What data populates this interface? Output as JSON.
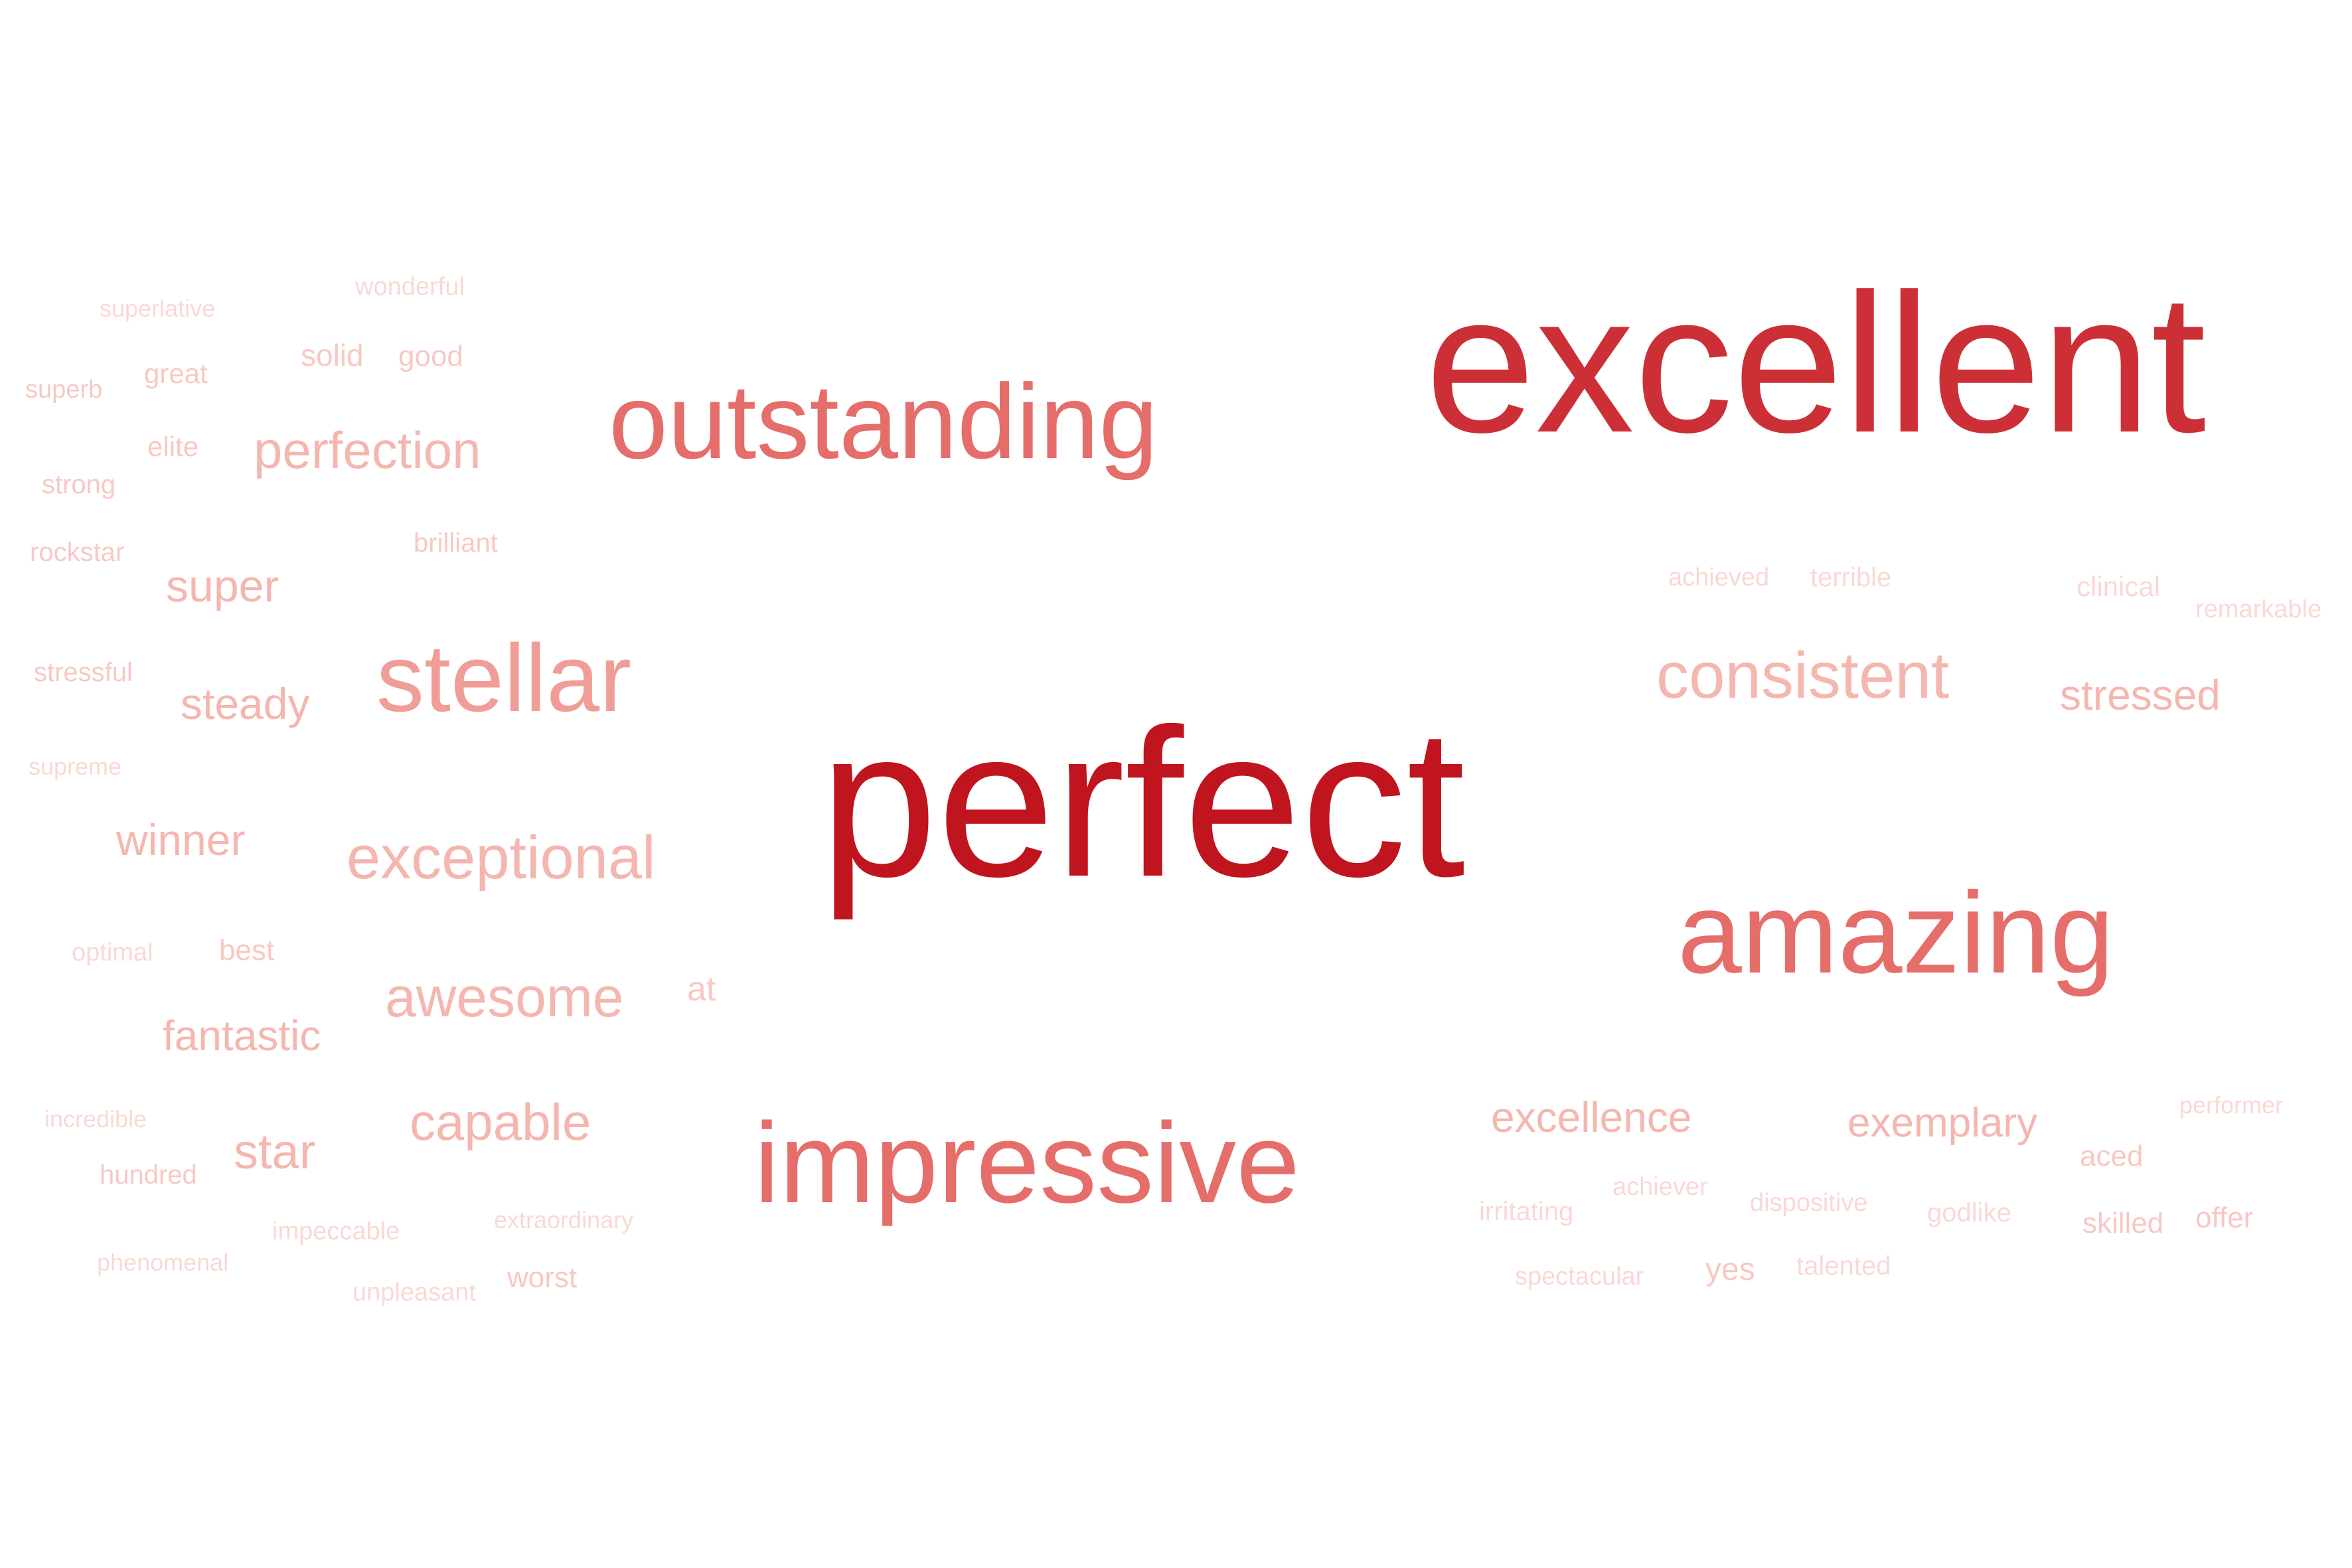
{
  "colors": {
    "background": "#ffffff",
    "tier_1": "#c0141f",
    "tier_2": "#cc3036",
    "tier_3": "#e56d6a",
    "tier_4": "#f09d98",
    "tier_5": "#f5b6b0",
    "tier_6": "#f8c8c4",
    "tier_7": "#fad8d5"
  },
  "words": [
    {
      "text": "perfect",
      "tier": 1
    },
    {
      "text": "excellent",
      "tier": 2
    },
    {
      "text": "outstanding",
      "tier": 3
    },
    {
      "text": "amazing",
      "tier": 3
    },
    {
      "text": "impressive",
      "tier": 3
    },
    {
      "text": "stellar",
      "tier": 4
    },
    {
      "text": "consistent",
      "tier": 5
    },
    {
      "text": "exceptional",
      "tier": 5
    },
    {
      "text": "perfection",
      "tier": 5
    },
    {
      "text": "awesome",
      "tier": 5
    },
    {
      "text": "capable",
      "tier": 5
    },
    {
      "text": "stressed",
      "tier": 5
    },
    {
      "text": "excellence",
      "tier": 5
    },
    {
      "text": "exemplary",
      "tier": 5
    },
    {
      "text": "super",
      "tier": 5
    },
    {
      "text": "steady",
      "tier": 5
    },
    {
      "text": "winner",
      "tier": 5
    },
    {
      "text": "fantastic",
      "tier": 5
    },
    {
      "text": "star",
      "tier": 5
    },
    {
      "text": "superlative",
      "tier": 7
    },
    {
      "text": "wonderful",
      "tier": 7
    },
    {
      "text": "solid",
      "tier": 6
    },
    {
      "text": "good",
      "tier": 6
    },
    {
      "text": "superb",
      "tier": 6
    },
    {
      "text": "great",
      "tier": 6
    },
    {
      "text": "elite",
      "tier": 6
    },
    {
      "text": "strong",
      "tier": 6
    },
    {
      "text": "rockstar",
      "tier": 6
    },
    {
      "text": "brilliant",
      "tier": 6
    },
    {
      "text": "stressful",
      "tier": 6
    },
    {
      "text": "supreme",
      "tier": 7
    },
    {
      "text": "optimal",
      "tier": 7
    },
    {
      "text": "best",
      "tier": 6
    },
    {
      "text": "at",
      "tier": 6
    },
    {
      "text": "incredible",
      "tier": 7
    },
    {
      "text": "hundred",
      "tier": 6
    },
    {
      "text": "impeccable",
      "tier": 7
    },
    {
      "text": "extraordinary",
      "tier": 7
    },
    {
      "text": "phenomenal",
      "tier": 7
    },
    {
      "text": "unpleasant",
      "tier": 7
    },
    {
      "text": "worst",
      "tier": 6
    },
    {
      "text": "achieved",
      "tier": 7
    },
    {
      "text": "terrible",
      "tier": 7
    },
    {
      "text": "clinical",
      "tier": 7
    },
    {
      "text": "remarkable",
      "tier": 7
    },
    {
      "text": "performer",
      "tier": 7
    },
    {
      "text": "aced",
      "tier": 6
    },
    {
      "text": "irritating",
      "tier": 7
    },
    {
      "text": "achiever",
      "tier": 7
    },
    {
      "text": "dispositive",
      "tier": 7
    },
    {
      "text": "godlike",
      "tier": 7
    },
    {
      "text": "skilled",
      "tier": 6
    },
    {
      "text": "offer",
      "tier": 6
    },
    {
      "text": "spectacular",
      "tier": 7
    },
    {
      "text": "yes",
      "tier": 6
    },
    {
      "text": "talented",
      "tier": 7
    }
  ]
}
